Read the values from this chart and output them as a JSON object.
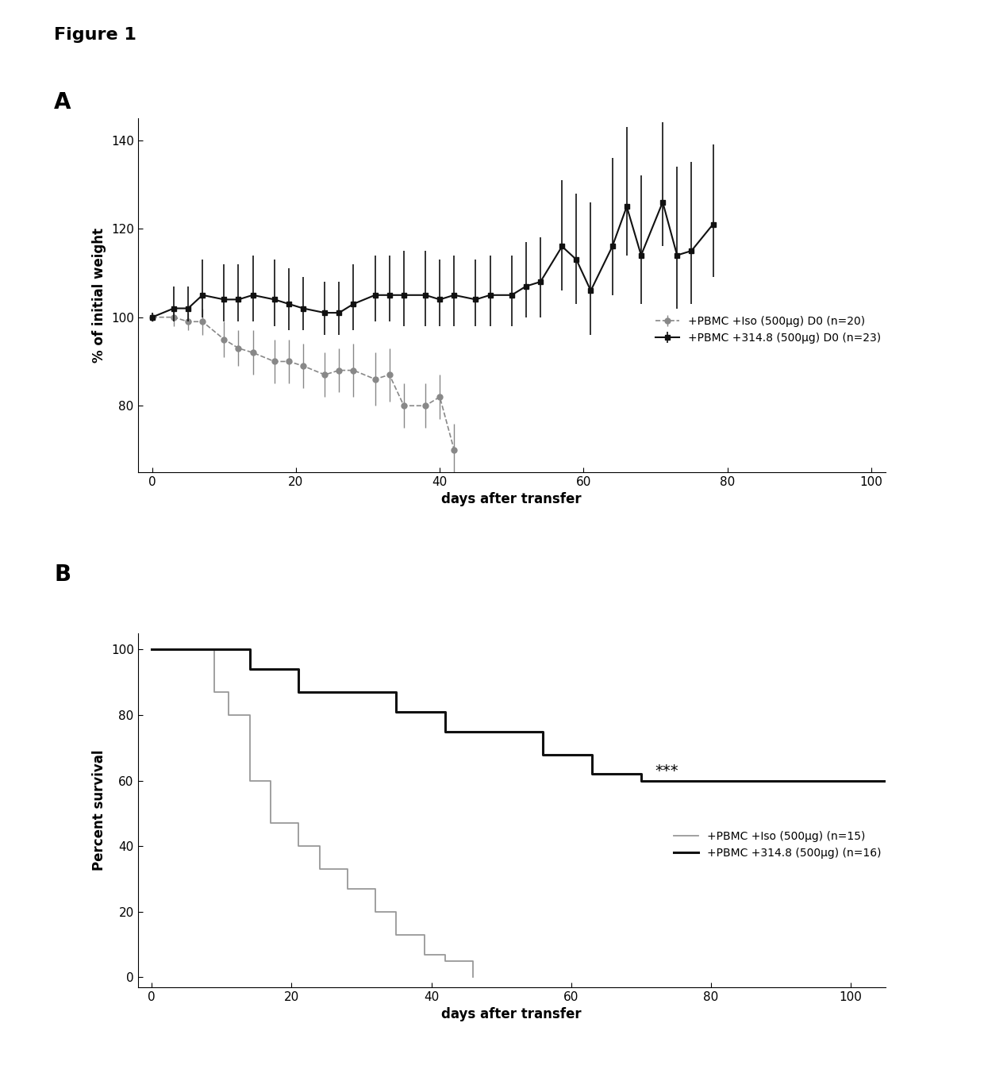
{
  "figure_title": "Figure 1",
  "panel_A": {
    "xlabel": "days after transfer",
    "ylabel": "% of initial weight",
    "xlim": [
      -2,
      102
    ],
    "ylim": [
      65,
      145
    ],
    "yticks": [
      80,
      100,
      120,
      140
    ],
    "xticks": [
      0,
      20,
      40,
      60,
      80,
      100
    ],
    "legend1_label": "+PBMC +Iso (500μg) D0 (n=20)",
    "legend2_label": "+PBMC +314.8 (500μg) D0 (n=23)",
    "iso_x": [
      0,
      3,
      5,
      7,
      10,
      12,
      14,
      17,
      19,
      21,
      24,
      26,
      28,
      31,
      33,
      35,
      38,
      40,
      42,
      45,
      47,
      50
    ],
    "iso_y": [
      100,
      100,
      99,
      99,
      95,
      93,
      92,
      90,
      90,
      89,
      87,
      88,
      88,
      86,
      87,
      80,
      80,
      82,
      70,
      null,
      null,
      null
    ],
    "iso_yerr_low": [
      1,
      2,
      2,
      3,
      4,
      4,
      5,
      5,
      5,
      5,
      5,
      5,
      6,
      6,
      6,
      5,
      5,
      5,
      6,
      null,
      null,
      null
    ],
    "iso_yerr_high": [
      1,
      2,
      2,
      3,
      4,
      4,
      5,
      5,
      5,
      5,
      5,
      5,
      6,
      6,
      6,
      5,
      5,
      5,
      6,
      null,
      null,
      null
    ],
    "ab_x": [
      0,
      3,
      5,
      7,
      10,
      12,
      14,
      17,
      19,
      21,
      24,
      26,
      28,
      31,
      33,
      35,
      38,
      40,
      42,
      45,
      47,
      50,
      52,
      54,
      57,
      59,
      61,
      64,
      66,
      68,
      71,
      73,
      75,
      78
    ],
    "ab_y": [
      100,
      102,
      102,
      105,
      104,
      104,
      105,
      104,
      103,
      102,
      101,
      101,
      103,
      105,
      105,
      105,
      105,
      104,
      105,
      104,
      105,
      105,
      107,
      108,
      116,
      113,
      106,
      116,
      125,
      114,
      126,
      114,
      115,
      121
    ],
    "ab_yerr_low": [
      1,
      3,
      3,
      5,
      5,
      5,
      6,
      6,
      6,
      5,
      5,
      5,
      6,
      6,
      6,
      7,
      7,
      6,
      7,
      6,
      7,
      7,
      7,
      8,
      10,
      10,
      10,
      11,
      11,
      11,
      10,
      12,
      12,
      12
    ],
    "ab_yerr_high": [
      1,
      5,
      5,
      8,
      8,
      8,
      9,
      9,
      8,
      7,
      7,
      7,
      9,
      9,
      9,
      10,
      10,
      9,
      9,
      9,
      9,
      9,
      10,
      10,
      15,
      15,
      20,
      20,
      18,
      18,
      18,
      20,
      20,
      18
    ]
  },
  "panel_B": {
    "xlabel": "days after transfer",
    "ylabel": "Percent survival",
    "xlim": [
      -2,
      105
    ],
    "ylim": [
      -3,
      105
    ],
    "yticks": [
      0,
      20,
      40,
      60,
      80,
      100
    ],
    "xticks": [
      0,
      20,
      40,
      60,
      80,
      100
    ],
    "significance": "***",
    "sig_x": 72,
    "sig_y": 63,
    "legend1_label": "+PBMC +Iso (500μg) (n=15)",
    "legend2_label": "+PBMC +314.8 (500μg) (n=16)",
    "iso_x": [
      0,
      9,
      11,
      14,
      17,
      21,
      24,
      28,
      32,
      35,
      39,
      42,
      46
    ],
    "iso_y": [
      100,
      87,
      80,
      60,
      47,
      40,
      33,
      27,
      20,
      13,
      7,
      5,
      0
    ],
    "ab_x": [
      0,
      14,
      21,
      28,
      35,
      42,
      56,
      63,
      70,
      105
    ],
    "ab_y": [
      100,
      94,
      87,
      87,
      81,
      75,
      68,
      62,
      60,
      60
    ]
  },
  "background_color": "#ffffff"
}
